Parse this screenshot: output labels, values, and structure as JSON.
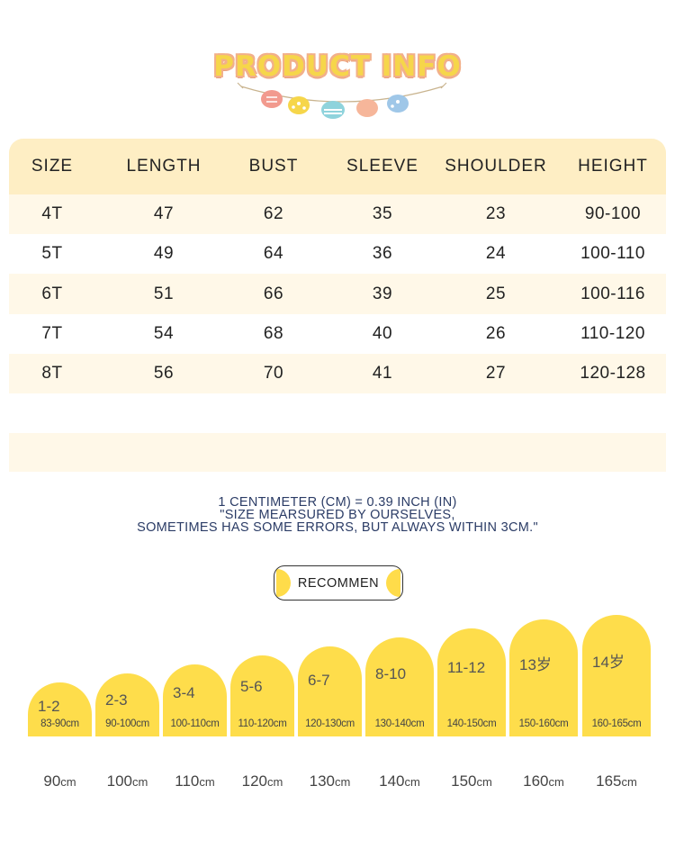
{
  "header": {
    "title": "PRODUCT INFO"
  },
  "colors": {
    "accent_yellow": "#fedd4b",
    "header_bg": "#feeec4",
    "row_tint": "#fff8e8",
    "note_text": "#2b3c66"
  },
  "size_table": {
    "columns": [
      "SIZE",
      "LENGTH",
      "BUST",
      "SLEEVE",
      "SHOULDER",
      "HEIGHT"
    ],
    "rows": [
      [
        "4T",
        "47",
        "62",
        "35",
        "23",
        "90-100"
      ],
      [
        "5T",
        "49",
        "64",
        "36",
        "24",
        "100-110"
      ],
      [
        "6T",
        "51",
        "66",
        "39",
        "25",
        "100-116"
      ],
      [
        "7T",
        "54",
        "68",
        "40",
        "26",
        "110-120"
      ],
      [
        "8T",
        "56",
        "70",
        "41",
        "27",
        "120-128"
      ]
    ]
  },
  "notes": {
    "conversion": "1 CENTIMETER (CM) = 0.39 INCH (IN)",
    "line1": "\"SIZE MEARSURED BY OURSELVES,",
    "line2": "SOMETIMES HAS SOME ERRORS, BUT ALWAYS WITHIN 3CM.\""
  },
  "recommend": {
    "label": "RECOMMEN"
  },
  "height_chart": {
    "unit": "cm",
    "items": [
      {
        "age": "1-2",
        "range": "83-90cm",
        "height": "90"
      },
      {
        "age": "2-3",
        "range": "90-100cm",
        "height": "100"
      },
      {
        "age": "3-4",
        "range": "100-110cm",
        "height": "110"
      },
      {
        "age": "5-6",
        "range": "110-120cm",
        "height": "120"
      },
      {
        "age": "6-7",
        "range": "120-130cm",
        "height": "130"
      },
      {
        "age": "8-10",
        "range": "130-140cm",
        "height": "140"
      },
      {
        "age": "11-12",
        "range": "140-150cm",
        "height": "150"
      },
      {
        "age": "13岁",
        "range": "150-160cm",
        "height": "160"
      },
      {
        "age": "14岁",
        "range": "160-165cm",
        "height": "165"
      }
    ]
  }
}
